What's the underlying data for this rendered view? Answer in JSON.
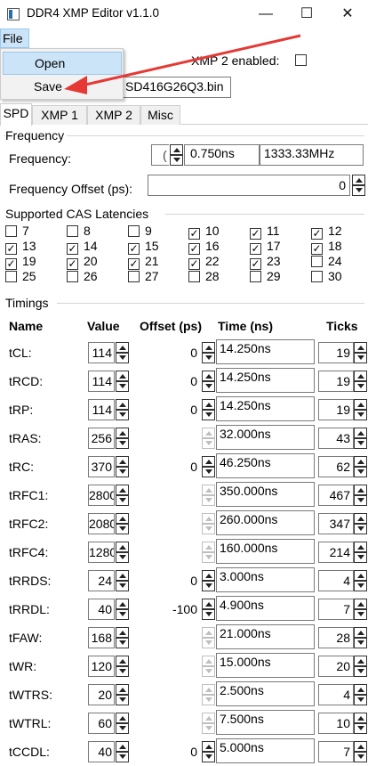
{
  "window": {
    "title": "DDR4 XMP Editor v1.1.0",
    "minimize": "—",
    "maximize": "☐",
    "close": "✕"
  },
  "menu": {
    "file": "File",
    "items": [
      "Open",
      "Save"
    ]
  },
  "header": {
    "xmp2_label": "XMP 2 enabled:",
    "xmp2_checked": false,
    "filename": "SD416G26Q3.bin"
  },
  "tabs": [
    "SPD",
    "XMP 1",
    "XMP 2",
    "Misc"
  ],
  "active_tab": "SPD",
  "frequency": {
    "group_title": "Frequency",
    "label": "Frequency:",
    "tck_value": "0.750ns",
    "mhz_value": "1333.33MHz",
    "offset_label": "Frequency Offset (ps):",
    "offset_value": "0"
  },
  "cas": {
    "group_title": "Supported CAS Latencies",
    "items": [
      {
        "label": "7",
        "checked": false
      },
      {
        "label": "8",
        "checked": false
      },
      {
        "label": "9",
        "checked": false
      },
      {
        "label": "10",
        "checked": true
      },
      {
        "label": "11",
        "checked": true
      },
      {
        "label": "12",
        "checked": true
      },
      {
        "label": "13",
        "checked": true
      },
      {
        "label": "14",
        "checked": true
      },
      {
        "label": "15",
        "checked": true
      },
      {
        "label": "16",
        "checked": true
      },
      {
        "label": "17",
        "checked": true
      },
      {
        "label": "18",
        "checked": true
      },
      {
        "label": "19",
        "checked": true
      },
      {
        "label": "20",
        "checked": true
      },
      {
        "label": "21",
        "checked": true
      },
      {
        "label": "22",
        "checked": true
      },
      {
        "label": "23",
        "checked": true
      },
      {
        "label": "24",
        "checked": false
      },
      {
        "label": "25",
        "checked": false
      },
      {
        "label": "26",
        "checked": false
      },
      {
        "label": "27",
        "checked": false
      },
      {
        "label": "28",
        "checked": false
      },
      {
        "label": "29",
        "checked": false
      },
      {
        "label": "30",
        "checked": false
      }
    ]
  },
  "timings": {
    "group_title": "Timings",
    "headers": [
      "Name",
      "Value",
      "Offset (ps)",
      "Time (ns)",
      "Ticks"
    ],
    "rows": [
      {
        "name": "tCL:",
        "value": "114",
        "offset": "0",
        "offset_enabled": true,
        "time": "14.250ns",
        "ticks": "19"
      },
      {
        "name": "tRCD:",
        "value": "114",
        "offset": "0",
        "offset_enabled": true,
        "time": "14.250ns",
        "ticks": "19"
      },
      {
        "name": "tRP:",
        "value": "114",
        "offset": "0",
        "offset_enabled": true,
        "time": "14.250ns",
        "ticks": "19"
      },
      {
        "name": "tRAS:",
        "value": "256",
        "offset": "",
        "offset_enabled": false,
        "time": "32.000ns",
        "ticks": "43"
      },
      {
        "name": "tRC:",
        "value": "370",
        "offset": "0",
        "offset_enabled": true,
        "time": "46.250ns",
        "ticks": "62"
      },
      {
        "name": "tRFC1:",
        "value": "2800",
        "offset": "",
        "offset_enabled": false,
        "time": "350.000ns",
        "ticks": "467"
      },
      {
        "name": "tRFC2:",
        "value": "2080",
        "offset": "",
        "offset_enabled": false,
        "time": "260.000ns",
        "ticks": "347"
      },
      {
        "name": "tRFC4:",
        "value": "1280",
        "offset": "",
        "offset_enabled": false,
        "time": "160.000ns",
        "ticks": "214"
      },
      {
        "name": "tRRDS:",
        "value": "24",
        "offset": "0",
        "offset_enabled": true,
        "time": "3.000ns",
        "ticks": "4"
      },
      {
        "name": "tRRDL:",
        "value": "40",
        "offset": "-100",
        "offset_enabled": true,
        "time": "4.900ns",
        "ticks": "7"
      },
      {
        "name": "tFAW:",
        "value": "168",
        "offset": "",
        "offset_enabled": false,
        "time": "21.000ns",
        "ticks": "28"
      },
      {
        "name": "tWR:",
        "value": "120",
        "offset": "",
        "offset_enabled": false,
        "time": "15.000ns",
        "ticks": "20"
      },
      {
        "name": "tWTRS:",
        "value": "20",
        "offset": "",
        "offset_enabled": false,
        "time": "2.500ns",
        "ticks": "4"
      },
      {
        "name": "tWTRL:",
        "value": "60",
        "offset": "",
        "offset_enabled": false,
        "time": "7.500ns",
        "ticks": "10"
      },
      {
        "name": "tCCDL:",
        "value": "40",
        "offset": "0",
        "offset_enabled": true,
        "time": "5.000ns",
        "ticks": "7"
      }
    ]
  },
  "colors": {
    "highlight": "#cce4f7",
    "highlight_border": "#99c9ef",
    "arrow": "#e53935"
  }
}
